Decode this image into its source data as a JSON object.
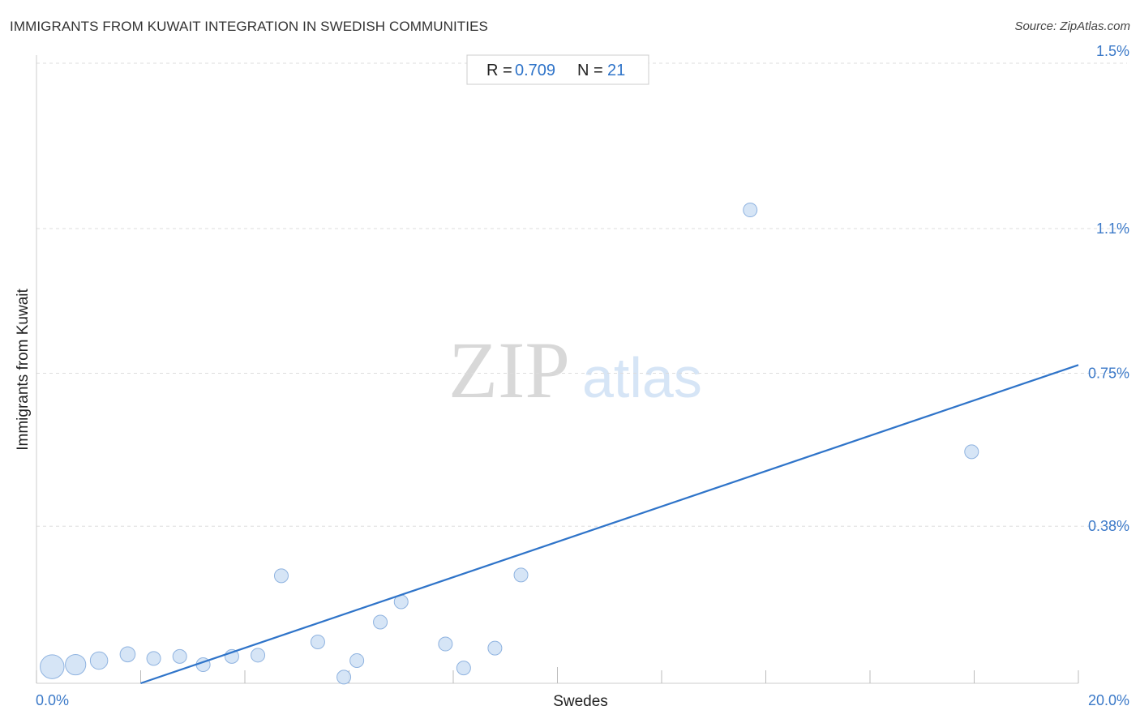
{
  "title": "IMMIGRANTS FROM KUWAIT INTEGRATION IN SWEDISH COMMUNITIES",
  "source": "Source: ZipAtlas.com",
  "stats": {
    "r_label": "R =",
    "r_value": "0.709",
    "n_label": "N =",
    "n_value": "21"
  },
  "watermark": {
    "zip": "ZIP",
    "atlas": "atlas"
  },
  "colors": {
    "accent": "#2f74c9",
    "point_fill": "#cfe0f5",
    "point_stroke": "#8fb3e0",
    "grid": "#dddddd"
  },
  "chart_data": {
    "type": "scatter",
    "title": "IMMIGRANTS FROM KUWAIT INTEGRATION IN SWEDISH COMMUNITIES",
    "xlabel": "Swedes",
    "ylabel": "Immigrants from Kuwait",
    "xlim": [
      0,
      20
    ],
    "ylim": [
      0,
      1.5
    ],
    "x_tick_labels": [
      "0.0%",
      "20.0%"
    ],
    "y_ticks": [
      0.38,
      0.75,
      1.1,
      1.5
    ],
    "y_tick_labels": [
      "0.38%",
      "0.75%",
      "1.1%",
      "1.5%"
    ],
    "grid": true,
    "r": 0.709,
    "n": 21,
    "points": [
      {
        "x": 0.3,
        "y": 0.04,
        "size": 3
      },
      {
        "x": 0.75,
        "y": 0.045,
        "size": 2.2
      },
      {
        "x": 1.2,
        "y": 0.055,
        "size": 1.6
      },
      {
        "x": 1.75,
        "y": 0.07,
        "size": 1.2
      },
      {
        "x": 2.25,
        "y": 0.06,
        "size": 1
      },
      {
        "x": 2.75,
        "y": 0.065,
        "size": 1
      },
      {
        "x": 3.2,
        "y": 0.045,
        "size": 1
      },
      {
        "x": 3.75,
        "y": 0.065,
        "size": 1
      },
      {
        "x": 4.25,
        "y": 0.068,
        "size": 1
      },
      {
        "x": 4.7,
        "y": 0.26,
        "size": 1
      },
      {
        "x": 5.4,
        "y": 0.1,
        "size": 1
      },
      {
        "x": 5.9,
        "y": 0.015,
        "size": 1
      },
      {
        "x": 6.15,
        "y": 0.055,
        "size": 1
      },
      {
        "x": 6.6,
        "y": 0.148,
        "size": 1
      },
      {
        "x": 7.0,
        "y": 0.197,
        "size": 1
      },
      {
        "x": 7.85,
        "y": 0.095,
        "size": 1
      },
      {
        "x": 8.2,
        "y": 0.037,
        "size": 1
      },
      {
        "x": 8.8,
        "y": 0.085,
        "size": 1
      },
      {
        "x": 9.3,
        "y": 0.262,
        "size": 1
      },
      {
        "x": 13.7,
        "y": 1.145,
        "size": 1
      },
      {
        "x": 17.95,
        "y": 0.56,
        "size": 1
      }
    ],
    "trendline": {
      "x": [
        2,
        20
      ],
      "y": [
        0,
        0.77
      ]
    }
  }
}
